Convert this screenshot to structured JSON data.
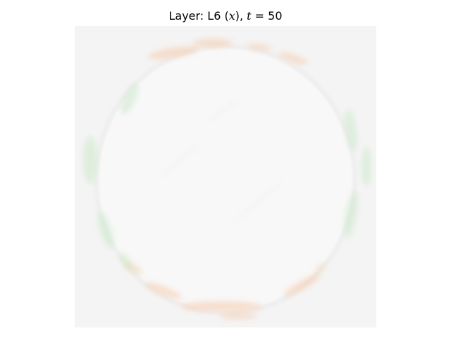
{
  "figure": {
    "title_prefix": "Layer: L6 (",
    "title_var": "x",
    "title_mid": "), ",
    "title_t": "t",
    "title_eq": " = 50"
  },
  "colors": {
    "background": "#f4f4f4",
    "inner": "#f8f8f8",
    "warm": "#f6c8a8",
    "cool": "#cfe9cc"
  }
}
